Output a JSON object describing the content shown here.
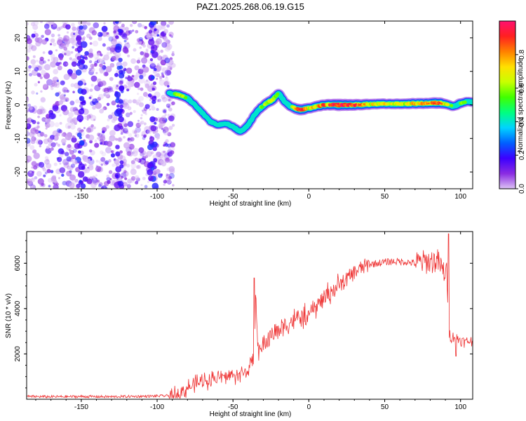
{
  "title": "PAZ1.2025.268.06.19.G15",
  "chart_data": [
    {
      "type": "heatmap",
      "title": "PAZ1.2025.268.06.19.G15",
      "xlabel": "Height of straight line (km)",
      "ylabel": "Frequency (Hz)",
      "xlim": [
        -186,
        108
      ],
      "ylim": [
        -25,
        25
      ],
      "xticks": [
        -150,
        -100,
        -50,
        0,
        50,
        100
      ],
      "xtick_labels": [
        "-150",
        "-100",
        "-50",
        "0",
        "50",
        "100"
      ],
      "yticks": [
        -20,
        -10,
        0,
        10,
        20
      ],
      "ytick_labels": [
        "-20",
        "-10",
        "0",
        "10",
        "20"
      ],
      "colorbar": {
        "label": "Normalized spectral amplitude",
        "range": [
          0,
          1
        ],
        "ticks": [
          0.0,
          0.2,
          0.4,
          0.6,
          0.8
        ],
        "tick_labels": [
          "0.0",
          "0.2",
          "0.4",
          "0.6",
          "0.8"
        ],
        "colormap": [
          "#ddc4f5",
          "#8a2be2",
          "#3c00ff",
          "#0060ff",
          "#00d4ff",
          "#00ff80",
          "#40ff00",
          "#c8ff00",
          "#ffe000",
          "#ff8000",
          "#ff2020",
          "#ff1070"
        ]
      },
      "noise_region": {
        "x_range": [
          -186,
          -92
        ],
        "y_range": [
          -25,
          25
        ]
      },
      "signal_ridge": {
        "x": [
          -92,
          -85,
          -80,
          -75,
          -70,
          -65,
          -60,
          -55,
          -50,
          -45,
          -40,
          -36,
          -32,
          -28,
          -24,
          -20,
          -16,
          -12,
          -8,
          -5,
          0,
          10,
          20,
          30,
          40,
          50,
          60,
          70,
          80,
          85,
          90,
          95,
          100,
          104,
          108
        ],
        "freq": [
          3.5,
          3,
          2,
          0,
          -2.5,
          -5,
          -6,
          -5.5,
          -6.5,
          -8,
          -6,
          -3,
          -1,
          0.5,
          1.5,
          3.5,
          1,
          -0.5,
          -1.2,
          -1.5,
          -1.0,
          0,
          0,
          0,
          0.2,
          0.3,
          0.3,
          0.4,
          0.5,
          0.6,
          0.4,
          -0.5,
          0.5,
          1.0,
          0.8
        ],
        "amplitude": [
          0.4,
          0.7,
          0.5,
          0.35,
          0.4,
          0.3,
          0.35,
          0.4,
          0.45,
          0.5,
          0.45,
          0.4,
          0.55,
          0.65,
          0.75,
          0.5,
          0.45,
          0.55,
          0.8,
          0.95,
          0.7,
          0.85,
          1.0,
          0.9,
          0.75,
          0.7,
          0.7,
          0.75,
          0.8,
          0.9,
          0.7,
          0.5,
          0.6,
          0.5,
          0.5
        ]
      }
    },
    {
      "type": "line",
      "xlabel": "Height of straight line (km)",
      "ylabel": "SNR (10 * v/v)",
      "xlim": [
        -186,
        108
      ],
      "ylim": [
        0,
        7400
      ],
      "xticks": [
        -150,
        -100,
        -50,
        0,
        50,
        100
      ],
      "xtick_labels": [
        "-150",
        "-100",
        "-50",
        "0",
        "50",
        "100"
      ],
      "yticks": [
        2000,
        4000,
        6000
      ],
      "ytick_labels": [
        "2000",
        "4000",
        "6000"
      ],
      "color": "#ee3333",
      "series": [
        {
          "name": "SNR",
          "x": [
            -186,
            -170,
            -150,
            -130,
            -110,
            -100,
            -90,
            -85,
            -80,
            -75,
            -70,
            -65,
            -60,
            -55,
            -50,
            -45,
            -40,
            -36,
            -35,
            -33,
            -30,
            -25,
            -20,
            -15,
            -10,
            -5,
            0,
            5,
            10,
            15,
            20,
            25,
            30,
            35,
            40,
            45,
            50,
            55,
            60,
            65,
            70,
            75,
            80,
            85,
            88,
            91,
            92,
            94,
            96,
            98,
            100,
            103,
            106,
            108
          ],
          "y": [
            120,
            110,
            120,
            110,
            130,
            140,
            160,
            250,
            500,
            650,
            800,
            900,
            950,
            1000,
            1050,
            1100,
            1300,
            1700,
            4500,
            2000,
            2400,
            2800,
            3100,
            3300,
            3500,
            3600,
            3700,
            4100,
            4500,
            4800,
            5000,
            5300,
            5600,
            5800,
            5950,
            6000,
            6050,
            6080,
            6080,
            6050,
            6000,
            6050,
            6080,
            6100,
            5700,
            5500,
            3000,
            2700,
            2800,
            2700,
            2600,
            2500,
            2600,
            2500
          ],
          "spikes": [
            {
              "x": -36,
              "y": 5350
            },
            {
              "x": 92,
              "y": 7300
            },
            {
              "x": 97,
              "y": 1900
            }
          ]
        }
      ]
    }
  ]
}
